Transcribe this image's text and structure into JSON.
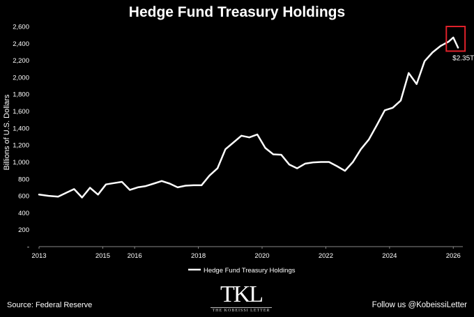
{
  "header": {
    "title": "Hedge Fund Treasury Holdings"
  },
  "footer": {
    "source": "Source: Federal Reserve",
    "follow": "Follow us @KobeissiLetter",
    "logo_text": "TKL",
    "logo_subtext": "THE KOBEISSI LETTER"
  },
  "chart_data": {
    "type": "line",
    "title": "Hedge Fund Treasury Holdings",
    "ylabel": "Billions of U.S. Dollars",
    "xlabel": "",
    "xlim": [
      2013,
      2026.3
    ],
    "ylim": [
      0,
      2600
    ],
    "x_ticks": [
      2013,
      2015,
      2016,
      2018,
      2020,
      2022,
      2024,
      2026
    ],
    "y_ticks": [
      0,
      200,
      400,
      600,
      800,
      1000,
      1200,
      1400,
      1600,
      1800,
      2000,
      2200,
      2400,
      2600
    ],
    "y_tick_labels": [
      "-",
      "200",
      "400",
      "600",
      "800",
      "1,000",
      "1,200",
      "1,400",
      "1,600",
      "1,800",
      "2,000",
      "2,200",
      "2,400",
      "2,600"
    ],
    "grid": false,
    "legend_position": "bottom",
    "line_color": "#ffffff",
    "highlight_color": "#e0212a",
    "series": [
      {
        "name": "Hedge Fund Treasury Holdings",
        "x": [
          2013.0,
          2013.3,
          2013.6,
          2013.85,
          2014.1,
          2014.35,
          2014.6,
          2014.85,
          2015.1,
          2015.35,
          2015.6,
          2015.85,
          2016.1,
          2016.35,
          2016.6,
          2016.85,
          2017.1,
          2017.35,
          2017.6,
          2017.85,
          2018.1,
          2018.35,
          2018.6,
          2018.85,
          2019.1,
          2019.35,
          2019.6,
          2019.85,
          2020.1,
          2020.35,
          2020.6,
          2020.85,
          2021.1,
          2021.35,
          2021.6,
          2021.85,
          2022.1,
          2022.35,
          2022.6,
          2022.85,
          2023.1,
          2023.35,
          2023.6,
          2023.85,
          2024.1,
          2024.35,
          2024.6,
          2024.85,
          2025.1,
          2025.35,
          2025.6,
          2025.85,
          2026.0,
          2026.15
        ],
        "values": [
          615,
          600,
          590,
          635,
          680,
          580,
          695,
          615,
          735,
          750,
          765,
          670,
          700,
          715,
          745,
          775,
          745,
          700,
          720,
          725,
          725,
          840,
          925,
          1150,
          1230,
          1310,
          1290,
          1325,
          1165,
          1090,
          1085,
          970,
          925,
          980,
          995,
          1000,
          1000,
          950,
          895,
          1000,
          1150,
          1265,
          1435,
          1610,
          1640,
          1725,
          2050,
          1920,
          2190,
          2295,
          2370,
          2420,
          2470,
          2350
        ]
      }
    ],
    "annotations": [
      {
        "label": "$2.35T",
        "x": 2026.15,
        "y": 2350
      }
    ]
  }
}
